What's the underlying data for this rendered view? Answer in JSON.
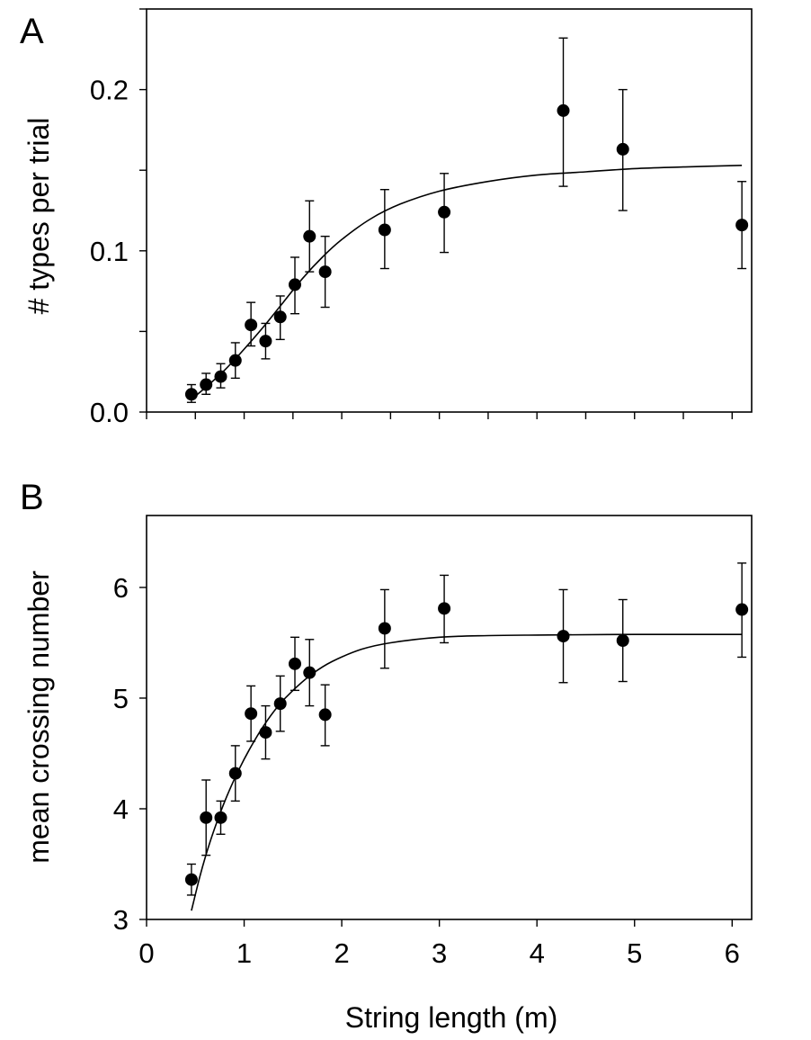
{
  "chart_data": [
    {
      "type": "scatter",
      "panel_label": "A",
      "title": "",
      "xlabel": "",
      "ylabel": "# types per trial",
      "xlim": [
        0,
        6.2
      ],
      "ylim": [
        0,
        0.25
      ],
      "x_ticks": [
        0,
        0.5,
        1,
        1.5,
        2,
        2.5,
        3,
        3.5,
        4,
        4.5,
        5,
        5.5,
        6
      ],
      "y_ticks": [
        0.0,
        0.05,
        0.1,
        0.15,
        0.2,
        0.25
      ],
      "y_tick_labels": [
        {
          "value": 0.0,
          "label": "0.0"
        },
        {
          "value": 0.1,
          "label": "0.1"
        },
        {
          "value": 0.2,
          "label": "0.2"
        }
      ],
      "grid": false,
      "series": [
        {
          "x": [
            0.46,
            0.61,
            0.76,
            0.91,
            1.07,
            1.22,
            1.37,
            1.52,
            1.67,
            1.83,
            2.44,
            3.05,
            4.27,
            4.88,
            6.1
          ],
          "y": [
            0.011,
            0.017,
            0.022,
            0.032,
            0.054,
            0.044,
            0.059,
            0.079,
            0.109,
            0.087,
            0.113,
            0.124,
            0.187,
            0.163,
            0.116
          ],
          "err_low": [
            0.006,
            0.011,
            0.015,
            0.021,
            0.041,
            0.033,
            0.045,
            0.061,
            0.087,
            0.065,
            0.089,
            0.099,
            0.14,
            0.125,
            0.089
          ],
          "err_high": [
            0.017,
            0.024,
            0.03,
            0.043,
            0.068,
            0.055,
            0.072,
            0.096,
            0.131,
            0.109,
            0.138,
            0.148,
            0.232,
            0.2,
            0.143
          ]
        }
      ],
      "fit_curve": {
        "x": [
          0.46,
          0.6,
          0.8,
          1.0,
          1.2,
          1.4,
          1.6,
          1.8,
          2.0,
          2.3,
          2.6,
          3.0,
          3.5,
          4.0,
          4.5,
          5.0,
          5.5,
          6.1
        ],
        "y": [
          0.008,
          0.015,
          0.026,
          0.039,
          0.053,
          0.068,
          0.083,
          0.096,
          0.107,
          0.12,
          0.129,
          0.137,
          0.143,
          0.147,
          0.149,
          0.151,
          0.152,
          0.153
        ]
      }
    },
    {
      "type": "scatter",
      "panel_label": "B",
      "title": "",
      "xlabel": "String length (m)",
      "ylabel": "mean crossing number",
      "xlim": [
        0,
        6.2
      ],
      "ylim": [
        3,
        6.65
      ],
      "x_ticks": [
        0,
        1,
        2,
        3,
        4,
        5,
        6
      ],
      "x_tick_labels": [
        "0",
        "1",
        "2",
        "3",
        "4",
        "5",
        "6"
      ],
      "y_ticks": [
        3,
        4,
        5,
        6
      ],
      "y_tick_labels": [
        {
          "value": 3,
          "label": "3"
        },
        {
          "value": 4,
          "label": "4"
        },
        {
          "value": 5,
          "label": "5"
        },
        {
          "value": 6,
          "label": "6"
        }
      ],
      "grid": false,
      "series": [
        {
          "x": [
            0.46,
            0.61,
            0.76,
            0.91,
            1.07,
            1.22,
            1.37,
            1.52,
            1.67,
            1.83,
            2.44,
            3.05,
            4.27,
            4.88,
            6.1
          ],
          "y": [
            3.36,
            3.92,
            3.92,
            4.32,
            4.86,
            4.69,
            4.95,
            5.31,
            5.23,
            4.85,
            5.63,
            5.81,
            5.56,
            5.52,
            5.8
          ],
          "err_low": [
            3.22,
            3.58,
            3.77,
            4.07,
            4.61,
            4.45,
            4.7,
            5.07,
            4.93,
            4.57,
            5.27,
            5.5,
            5.14,
            5.15,
            5.37
          ],
          "err_high": [
            3.5,
            4.26,
            4.07,
            4.57,
            5.11,
            4.93,
            5.2,
            5.55,
            5.53,
            5.12,
            5.98,
            6.11,
            5.98,
            5.89,
            6.22
          ]
        }
      ],
      "fit_curve": {
        "x": [
          0.46,
          0.55,
          0.65,
          0.75,
          0.85,
          0.95,
          1.05,
          1.2,
          1.35,
          1.5,
          1.7,
          1.9,
          2.2,
          2.5,
          3.0,
          3.5,
          4.0,
          5.0,
          6.1
        ],
        "y": [
          3.08,
          3.4,
          3.7,
          3.95,
          4.17,
          4.36,
          4.53,
          4.75,
          4.93,
          5.07,
          5.22,
          5.33,
          5.44,
          5.5,
          5.55,
          5.565,
          5.57,
          5.575,
          5.575
        ]
      }
    }
  ]
}
